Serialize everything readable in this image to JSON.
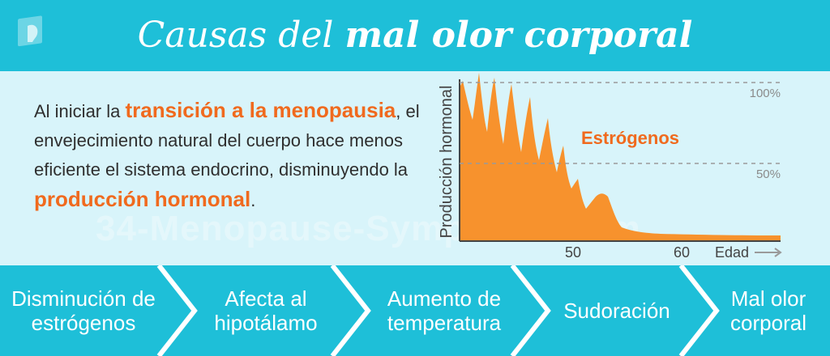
{
  "header": {
    "title_part1": "Causas del",
    "title_part2": "mal olor corporal"
  },
  "paragraph": {
    "t1": "Al iniciar la ",
    "h1": "transición a la menopausia",
    "t2": ", el envejecimiento natural del cuerpo hace menos eficiente el sistema endocrino, disminuyendo la ",
    "h2": "producción hormonal",
    "t3": "."
  },
  "watermark": "34-Menopause-Symptoms.com",
  "chart_data": {
    "type": "area",
    "series": [
      {
        "name": "Estrógenos",
        "color": "#f7922d"
      }
    ],
    "ylabel": "Producción hormonal",
    "xlabel": "Edad",
    "x_ticks": [
      "50",
      "60"
    ],
    "reference_lines": [
      "100%",
      "50%"
    ],
    "grid": false,
    "legend": "series label inside plot"
  },
  "steps": [
    "Disminución de estrógenos",
    "Afecta al hipotálamo",
    "Aumento de temperatura",
    "Sudoración",
    "Mal olor corporal"
  ],
  "colors": {
    "header_bg": "#1ebfd8",
    "content_bg": "#d8f4fa",
    "highlight": "#f06a1e",
    "area": "#f7922d",
    "arrow_edge": "#ffffff"
  }
}
